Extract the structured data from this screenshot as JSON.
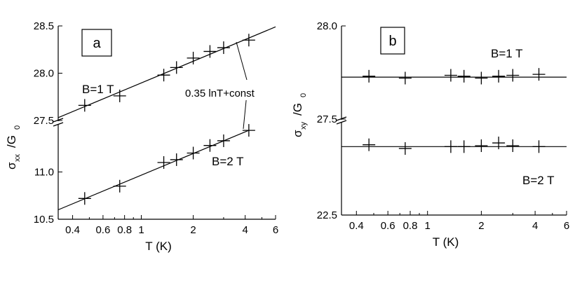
{
  "chart_data": [
    {
      "type": "scatter",
      "panel_label": "a",
      "xlabel": "T (K)",
      "ylabel_main": "σ",
      "ylabel_sub": "xx",
      "ylabel_over": "/G",
      "ylabel_over_sub": "0",
      "x_scale": "log",
      "xlim": [
        0.33,
        6
      ],
      "x_ticks": [
        0.4,
        0.6,
        0.8,
        1,
        2,
        4,
        6
      ],
      "x_tick_labels": [
        "0.4",
        "0.6",
        "0.8",
        "1",
        "2",
        "4",
        "6"
      ],
      "broken_y_axis": true,
      "segments": [
        {
          "ylim": [
            27.5,
            28.5
          ],
          "y_ticks": [
            27.5,
            28.0,
            28.5
          ],
          "y_tick_labels": [
            "27.5",
            "28.0",
            "28.5"
          ]
        },
        {
          "ylim": [
            10.5,
            11.5
          ],
          "y_ticks": [
            10.5,
            11.0
          ],
          "y_tick_labels": [
            "10.5",
            "11.0"
          ]
        }
      ],
      "annotation": "0.35 lnT+const",
      "series": [
        {
          "name": "B=1 T",
          "segment": 0,
          "x": [
            0.47,
            0.75,
            1.35,
            1.6,
            2.0,
            2.5,
            3.0,
            4.2
          ],
          "y": [
            27.66,
            27.76,
            27.98,
            28.06,
            28.16,
            28.23,
            28.27,
            28.35
          ],
          "fit": {
            "x": [
              0.33,
              6
            ],
            "y": [
              27.53,
              28.49
            ]
          }
        },
        {
          "name": "B=2 T",
          "segment": 1,
          "x": [
            0.47,
            0.75,
            1.35,
            1.6,
            2.0,
            2.5,
            3.0,
            4.2
          ],
          "y": [
            10.72,
            10.85,
            11.1,
            11.13,
            11.2,
            11.28,
            11.33,
            11.44
          ],
          "fit": {
            "x": [
              0.33,
              4.2
            ],
            "y": [
              10.6,
              11.44
            ]
          }
        }
      ]
    },
    {
      "type": "scatter",
      "panel_label": "b",
      "xlabel": "T (K)",
      "ylabel_main": "σ",
      "ylabel_sub": "xy",
      "ylabel_over": "/G",
      "ylabel_over_sub": "0",
      "x_scale": "log",
      "xlim": [
        0.33,
        6
      ],
      "x_ticks": [
        0.4,
        0.6,
        0.8,
        1,
        2,
        4,
        6
      ],
      "x_tick_labels": [
        "0.4",
        "0.6",
        "0.8",
        "1",
        "2",
        "4",
        "6"
      ],
      "broken_y_axis": true,
      "segments": [
        {
          "ylim": [
            27.5,
            28.0
          ],
          "y_ticks": [
            27.5,
            28.0
          ],
          "y_tick_labels": [
            "27.5",
            "28.0"
          ]
        },
        {
          "ylim": [
            22.5,
            23.0
          ],
          "y_ticks": [
            22.5
          ],
          "y_tick_labels": [
            "22.5"
          ]
        }
      ],
      "series": [
        {
          "name": "B=1 T",
          "segment": 0,
          "x": [
            0.47,
            0.75,
            1.35,
            1.6,
            2.0,
            2.5,
            3.0,
            4.2
          ],
          "y": [
            27.73,
            27.72,
            27.735,
            27.73,
            27.72,
            27.73,
            27.735,
            27.74
          ],
          "fit": {
            "x": [
              0.33,
              6
            ],
            "y": [
              27.725,
              27.725
            ]
          }
        },
        {
          "name": "B=2 T",
          "segment": 1,
          "x": [
            0.47,
            0.75,
            1.35,
            1.6,
            2.0,
            2.5,
            3.0,
            4.2
          ],
          "y": [
            22.88,
            22.86,
            22.87,
            22.87,
            22.875,
            22.89,
            22.875,
            22.87
          ],
          "fit": {
            "x": [
              0.33,
              6
            ],
            "y": [
              22.87,
              22.87
            ]
          }
        }
      ]
    }
  ]
}
